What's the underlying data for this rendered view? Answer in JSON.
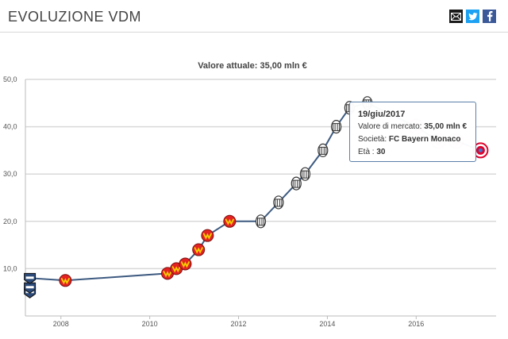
{
  "header": {
    "title": "EVOLUZIONE VDM",
    "share_icons": [
      "mail-icon",
      "twitter-icon",
      "facebook-icon"
    ]
  },
  "tooltip": {
    "date": "19/giu/2017",
    "value_label": "Valore di mercato:",
    "value": "35,00 mln €",
    "club_label": "Società:",
    "club": "FC Bayern Monaco",
    "age_label": "Età",
    "age_sep": ":",
    "age": "30"
  },
  "chart_data": {
    "type": "line",
    "title": "Valore attuale: 35,00 mln €",
    "xlabel": "",
    "ylabel": "",
    "x_ticks": [
      2008,
      2010,
      2012,
      2014,
      2016
    ],
    "y_ticks": [
      10,
      20,
      30,
      40,
      50
    ],
    "y_tick_labels": [
      "10,0",
      "20,0",
      "30,0",
      "40,0",
      "50,0"
    ],
    "xlim": [
      2007.2,
      2017.8
    ],
    "ylim": [
      0,
      50
    ],
    "grid": true,
    "line_color": "#3d5a80",
    "club_colors": {
      "Colo-Colo": "#2b4a7a",
      "Bayer 04 Leverkusen": "#e32221",
      "Juventus": "#555555",
      "FC Bayern Monaco": "#dc052d"
    },
    "series": [
      {
        "points": [
          {
            "x": 2007.3,
            "y": 5,
            "club": "Colo-Colo"
          },
          {
            "x": 2007.3,
            "y": 6,
            "club": "Colo-Colo"
          },
          {
            "x": 2007.3,
            "y": 8,
            "club": "Colo-Colo"
          },
          {
            "x": 2008.1,
            "y": 7.5,
            "club": "Bayer 04 Leverkusen"
          },
          {
            "x": 2010.4,
            "y": 9,
            "club": "Bayer 04 Leverkusen"
          },
          {
            "x": 2010.6,
            "y": 10,
            "club": "Bayer 04 Leverkusen"
          },
          {
            "x": 2010.8,
            "y": 11,
            "club": "Bayer 04 Leverkusen"
          },
          {
            "x": 2011.1,
            "y": 14,
            "club": "Bayer 04 Leverkusen"
          },
          {
            "x": 2011.3,
            "y": 17,
            "club": "Bayer 04 Leverkusen"
          },
          {
            "x": 2011.8,
            "y": 20,
            "club": "Bayer 04 Leverkusen"
          },
          {
            "x": 2012.5,
            "y": 20,
            "club": "Juventus"
          },
          {
            "x": 2012.9,
            "y": 24,
            "club": "Juventus"
          },
          {
            "x": 2013.3,
            "y": 28,
            "club": "Juventus"
          },
          {
            "x": 2013.5,
            "y": 30,
            "club": "Juventus"
          },
          {
            "x": 2013.9,
            "y": 35,
            "club": "Juventus"
          },
          {
            "x": 2014.2,
            "y": 40,
            "club": "Juventus"
          },
          {
            "x": 2014.5,
            "y": 44,
            "club": "Juventus"
          },
          {
            "x": 2014.9,
            "y": 45,
            "club": "Juventus"
          },
          {
            "x": 2016.0,
            "y": 40,
            "club": "FC Bayern Monaco"
          },
          {
            "x": 2016.5,
            "y": 37,
            "club": "FC Bayern Monaco"
          },
          {
            "x": 2016.9,
            "y": 37,
            "club": "FC Bayern Monaco"
          },
          {
            "x": 2017.45,
            "y": 35,
            "club": "FC Bayern Monaco"
          }
        ]
      }
    ]
  }
}
